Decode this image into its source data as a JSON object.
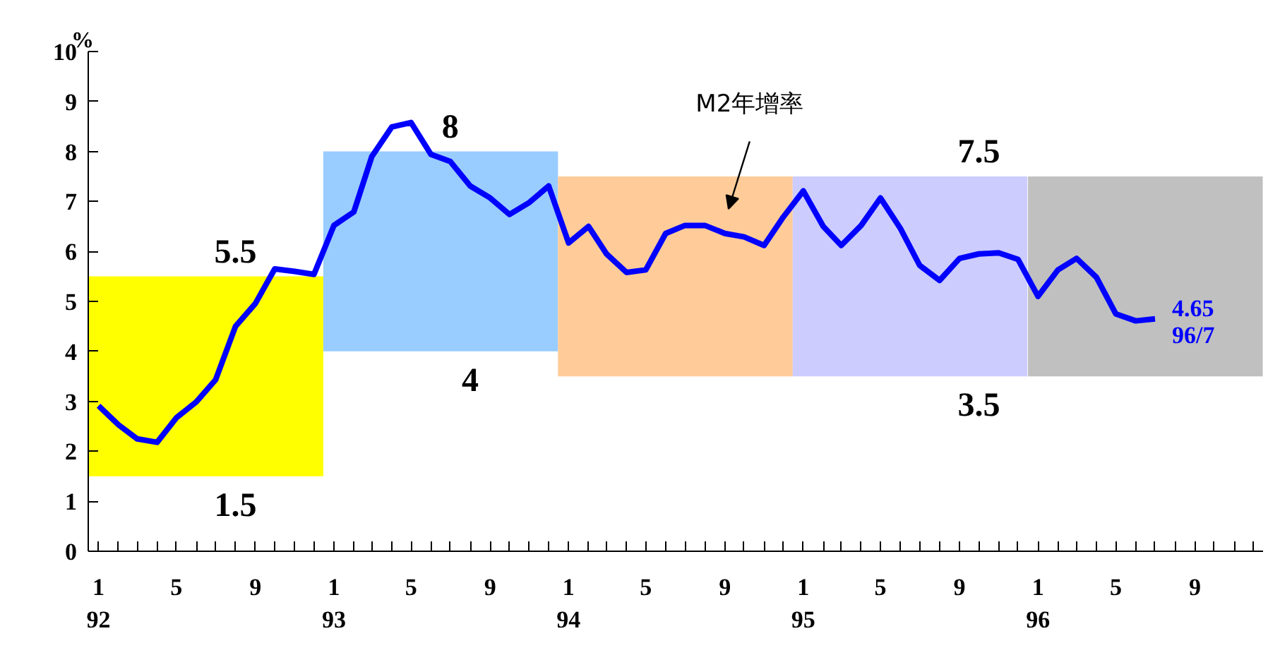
{
  "chart_data": {
    "type": "line",
    "ylabel": "%",
    "x": [
      "1992-01",
      "1992-02",
      "1992-03",
      "1992-04",
      "1992-05",
      "1992-06",
      "1992-07",
      "1992-08",
      "1992-09",
      "1992-10",
      "1992-11",
      "1992-12",
      "1993-01",
      "1993-02",
      "1993-03",
      "1993-04",
      "1993-05",
      "1993-06",
      "1993-07",
      "1993-08",
      "1993-09",
      "1993-10",
      "1993-11",
      "1993-12",
      "1994-01",
      "1994-02",
      "1994-03",
      "1994-04",
      "1994-05",
      "1994-06",
      "1994-07",
      "1994-08",
      "1994-09",
      "1994-10",
      "1994-11",
      "1994-12",
      "1995-01",
      "1995-02",
      "1995-03",
      "1995-04",
      "1995-05",
      "1995-06",
      "1995-07",
      "1995-08",
      "1995-09",
      "1995-10",
      "1995-11",
      "1995-12",
      "1996-01",
      "1996-02",
      "1996-03",
      "1996-04",
      "1996-05",
      "1996-06",
      "1996-07"
    ],
    "series": [
      {
        "type": "bar",
        "x": [
          "1992-06-16",
          "1993-06-16",
          "1994-06-16",
          "1995-06-16",
          "1996-06-16"
        ],
        "base": [
          1.5,
          4,
          3.5,
          3.5,
          3.5
        ],
        "values": [
          4,
          4,
          4,
          4,
          4
        ],
        "colors": [
          "#ffff00",
          "#99ccff",
          "#ffcc99",
          "#ccccff",
          "#c0c0c0"
        ]
      },
      {
        "color": "#0000ff",
        "values": [
          2.91,
          2.53,
          2.25,
          2.18,
          2.67,
          2.99,
          3.43,
          4.5,
          4.96,
          5.65,
          5.6,
          5.54,
          6.52,
          6.79,
          7.9,
          8.49,
          8.58,
          7.94,
          7.8,
          7.31,
          7.07,
          6.74,
          6.98,
          7.31,
          6.17,
          6.5,
          5.95,
          5.58,
          5.63,
          6.36,
          6.52,
          6.52,
          6.36,
          6.29,
          6.12,
          6.69,
          7.21,
          6.5,
          6.12,
          6.52,
          7.07,
          6.46,
          5.72,
          5.42,
          5.86,
          5.95,
          5.97,
          5.84,
          5.1,
          5.63,
          5.86,
          5.48,
          4.75,
          4.61,
          4.65
        ],
        "value_labels": [
          null,
          null,
          null,
          null,
          null,
          null,
          null,
          null,
          null,
          null,
          null,
          null,
          null,
          null,
          null,
          null,
          null,
          null,
          null,
          null,
          null,
          null,
          null,
          null,
          null,
          null,
          null,
          null,
          null,
          null,
          null,
          null,
          null,
          null,
          null,
          null,
          null,
          null,
          null,
          null,
          null,
          null,
          null,
          null,
          null,
          null,
          null,
          null,
          null,
          null,
          null,
          null,
          null,
          null,
          "4.65"
        ]
      }
    ],
    "annotations": [
      {
        "text": "5.5",
        "x": "1992-08",
        "y": 5.5
      },
      {
        "text": "1.5",
        "x": "1992-08",
        "y": 1.5
      },
      {
        "text": "8",
        "x": "1993-07",
        "y": 8
      },
      {
        "text": "4",
        "x": "1993-08",
        "y": 4
      },
      {
        "text": "7.5",
        "x": "1995-10",
        "y": 7.5
      },
      {
        "text": "3.5",
        "x": "1995-10",
        "y": 3.5
      },
      "M2年增率",
      {
        "text": "96/7",
        "x": "1996-07",
        "y": 4.65
      }
    ],
    "xlim": [
      "1991-12-16",
      "1996-12-16"
    ],
    "ylim": [
      0,
      10
    ],
    "yticks": [
      0,
      1,
      2,
      3,
      4,
      5,
      6,
      7,
      8,
      9,
      10
    ],
    "xticks": [
      {
        "value": "1992-01",
        "label": "1\n92"
      },
      {
        "value": "1992-02",
        "label": null
      },
      {
        "value": "1992-03",
        "label": null
      },
      {
        "value": "1992-04",
        "label": null
      },
      {
        "value": "1992-05",
        "label": "5"
      },
      {
        "value": "1992-06",
        "label": null
      },
      {
        "value": "1992-07",
        "label": null
      },
      {
        "value": "1992-08",
        "label": null
      },
      {
        "value": "1992-09",
        "label": "9"
      },
      {
        "value": "1992-10",
        "label": null
      },
      {
        "value": "1992-11",
        "label": null
      },
      {
        "value": "1992-12",
        "label": null
      },
      {
        "value": "1993-01",
        "label": "1\n93"
      },
      {
        "value": "1993-02",
        "label": null
      },
      {
        "value": "1993-03",
        "label": null
      },
      {
        "value": "1993-04",
        "label": null
      },
      {
        "value": "1993-05",
        "label": "5"
      },
      {
        "value": "1993-06",
        "label": null
      },
      {
        "value": "1993-07",
        "label": null
      },
      {
        "value": "1993-08",
        "label": null
      },
      {
        "value": "1993-09",
        "label": "9"
      },
      {
        "value": "1993-10",
        "label": null
      },
      {
        "value": "1993-11",
        "label": null
      },
      {
        "value": "1993-12",
        "label": null
      },
      {
        "value": "1994-01",
        "label": "1\n94"
      },
      {
        "value": "1994-02",
        "label": null
      },
      {
        "value": "1994-03",
        "label": null
      },
      {
        "value": "1994-04",
        "label": null
      },
      {
        "value": "1994-05",
        "label": "5"
      },
      {
        "value": "1994-06",
        "label": null
      },
      {
        "value": "1994-07",
        "label": null
      },
      {
        "value": "1994-08",
        "label": null
      },
      {
        "value": "1994-09",
        "label": "9"
      },
      {
        "value": "1994-10",
        "label": null
      },
      {
        "value": "1994-11",
        "label": null
      },
      {
        "value": "1994-12",
        "label": null
      },
      {
        "value": "1995-01",
        "label": "1\n95"
      },
      {
        "value": "1995-02",
        "label": null
      },
      {
        "value": "1995-03",
        "label": null
      },
      {
        "value": "1995-04",
        "label": null
      },
      {
        "value": "1995-05",
        "label": "5"
      },
      {
        "value": "1995-06",
        "label": null
      },
      {
        "value": "1995-07",
        "label": null
      },
      {
        "value": "1995-08",
        "label": null
      },
      {
        "value": "1995-09",
        "label": "9"
      },
      {
        "value": "1995-10",
        "label": null
      },
      {
        "value": "1995-11",
        "label": null
      },
      {
        "value": "1995-12",
        "label": null
      },
      {
        "value": "1996-01",
        "label": "1\n96"
      },
      {
        "value": "1996-02",
        "label": null
      },
      {
        "value": "1996-03",
        "label": null
      },
      {
        "value": "1996-04",
        "label": null
      },
      {
        "value": "1996-05",
        "label": "5"
      },
      {
        "value": "1996-06",
        "label": null
      },
      {
        "value": "1996-07",
        "label": null
      },
      {
        "value": "1996-08",
        "label": null
      },
      {
        "value": "1996-09",
        "label": "9"
      },
      {
        "value": "1996-10",
        "label": null
      },
      {
        "value": "1996-11",
        "label": null
      },
      {
        "value": "1996-12",
        "label": null
      }
    ],
    "grid": false
  }
}
